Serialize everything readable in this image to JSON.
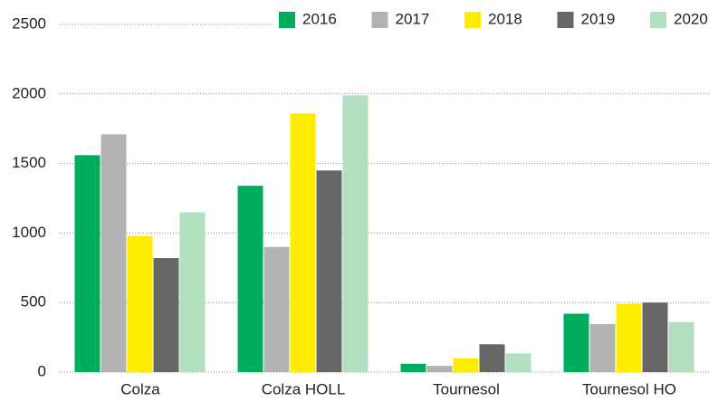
{
  "chart_data": {
    "type": "bar",
    "categories": [
      "Colza",
      "Colza HOLL",
      "Tournesol",
      "Tournesol HO"
    ],
    "series": [
      {
        "name": "2016",
        "color": "#00ad5c",
        "values": [
          1560,
          1340,
          60,
          420
        ]
      },
      {
        "name": "2017",
        "color": "#b3b3b3",
        "values": [
          1710,
          900,
          45,
          345
        ]
      },
      {
        "name": "2018",
        "color": "#ffed00",
        "values": [
          980,
          1860,
          100,
          490
        ]
      },
      {
        "name": "2019",
        "color": "#666666",
        "values": [
          820,
          1450,
          200,
          500
        ]
      },
      {
        "name": "2020",
        "color": "#b3dfc1",
        "values": [
          1150,
          1990,
          135,
          360
        ]
      }
    ],
    "ylim": [
      0,
      2500
    ],
    "yticks": [
      0,
      500,
      1000,
      1500,
      2000,
      2500
    ],
    "grid": true,
    "legend": "top-right"
  }
}
